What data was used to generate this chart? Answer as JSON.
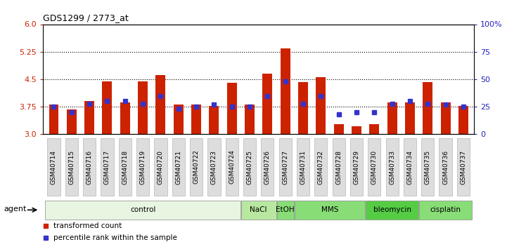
{
  "title": "GDS1299 / 2773_at",
  "samples": [
    "GSM40714",
    "GSM40715",
    "GSM40716",
    "GSM40717",
    "GSM40718",
    "GSM40719",
    "GSM40720",
    "GSM40721",
    "GSM40722",
    "GSM40723",
    "GSM40724",
    "GSM40725",
    "GSM40726",
    "GSM40727",
    "GSM40731",
    "GSM40732",
    "GSM40728",
    "GSM40729",
    "GSM40730",
    "GSM40733",
    "GSM40734",
    "GSM40735",
    "GSM40736",
    "GSM40737"
  ],
  "bar_values": [
    3.82,
    3.68,
    3.9,
    4.45,
    3.87,
    4.45,
    4.62,
    3.82,
    3.82,
    3.78,
    4.4,
    3.82,
    4.65,
    5.35,
    4.42,
    4.55,
    3.27,
    3.22,
    3.27,
    3.87,
    3.87,
    4.42,
    3.87,
    3.78
  ],
  "percentile_values": [
    25,
    20,
    28,
    30,
    30,
    28,
    35,
    23,
    25,
    27,
    25,
    25,
    35,
    48,
    28,
    35,
    18,
    20,
    20,
    28,
    30,
    28,
    27,
    25
  ],
  "bar_color": "#cc2200",
  "dot_color": "#3333cc",
  "ylim_left": [
    3.0,
    6.0
  ],
  "ylim_right": [
    0,
    100
  ],
  "yticks_left": [
    3.0,
    3.75,
    4.5,
    5.25,
    6.0
  ],
  "yticks_right": [
    0,
    25,
    50,
    75,
    100
  ],
  "ytick_labels_right": [
    "0",
    "25",
    "50",
    "75",
    "100%"
  ],
  "hlines": [
    3.75,
    4.5,
    5.25
  ],
  "group_definitions": [
    {
      "label": "control",
      "start": 0,
      "end": 10,
      "color": "#e8f5e0"
    },
    {
      "label": "NaCl",
      "start": 11,
      "end": 12,
      "color": "#b8e8a0"
    },
    {
      "label": "EtOH",
      "start": 13,
      "end": 13,
      "color": "#88dd77"
    },
    {
      "label": "MMS",
      "start": 14,
      "end": 17,
      "color": "#88dd77"
    },
    {
      "label": "bleomycin",
      "start": 18,
      "end": 20,
      "color": "#55cc44"
    },
    {
      "label": "cisplatin",
      "start": 21,
      "end": 23,
      "color": "#88dd77"
    }
  ],
  "legend_items": [
    {
      "label": "transformed count",
      "color": "#cc2200"
    },
    {
      "label": "percentile rank within the sample",
      "color": "#3333cc"
    }
  ],
  "background_color": "#ffffff",
  "bar_bottom": 3.0,
  "bar_width": 0.55,
  "tick_label_bg": "#dddddd"
}
